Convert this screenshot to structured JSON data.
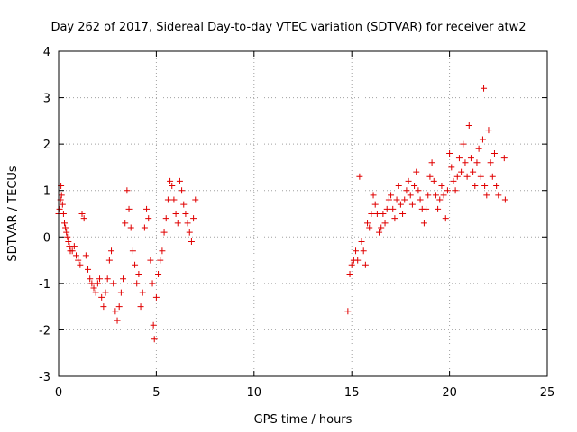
{
  "chart_data": {
    "type": "scatter",
    "title": "Day 262 of 2017, Sidereal Day-to-day VTEC variation (SDTVAR) for receiver atw2",
    "xlabel": "GPS time / hours",
    "ylabel": "SDTVAR / TECUs",
    "xlim": [
      0,
      25
    ],
    "ylim": [
      -3,
      4
    ],
    "xticks": [
      "0",
      "5",
      "10",
      "15",
      "20",
      "25"
    ],
    "yticks": [
      "-3",
      "-2",
      "-1",
      "0",
      "1",
      "2",
      "3",
      "4"
    ],
    "grid": true,
    "marker": "+",
    "color": "#e00000",
    "series": [
      {
        "name": "SDTVAR",
        "points": [
          [
            0.0,
            0.5
          ],
          [
            0.05,
            0.6
          ],
          [
            0.1,
            0.8
          ],
          [
            0.12,
            1.1
          ],
          [
            0.15,
            0.9
          ],
          [
            0.2,
            0.7
          ],
          [
            0.25,
            0.5
          ],
          [
            0.3,
            0.3
          ],
          [
            0.35,
            0.2
          ],
          [
            0.4,
            0.1
          ],
          [
            0.45,
            0.0
          ],
          [
            0.5,
            -0.1
          ],
          [
            0.55,
            -0.2
          ],
          [
            0.6,
            -0.3
          ],
          [
            0.7,
            -0.3
          ],
          [
            0.8,
            -0.2
          ],
          [
            0.9,
            -0.4
          ],
          [
            1.0,
            -0.5
          ],
          [
            1.1,
            -0.6
          ],
          [
            1.2,
            0.5
          ],
          [
            1.3,
            0.4
          ],
          [
            1.4,
            -0.4
          ],
          [
            1.5,
            -0.7
          ],
          [
            1.6,
            -0.9
          ],
          [
            1.7,
            -1.0
          ],
          [
            1.8,
            -1.1
          ],
          [
            1.9,
            -1.2
          ],
          [
            2.0,
            -1.0
          ],
          [
            2.1,
            -0.9
          ],
          [
            2.2,
            -1.3
          ],
          [
            2.3,
            -1.5
          ],
          [
            2.4,
            -1.2
          ],
          [
            2.5,
            -0.9
          ],
          [
            2.6,
            -0.5
          ],
          [
            2.7,
            -0.3
          ],
          [
            2.8,
            -1.0
          ],
          [
            2.9,
            -1.6
          ],
          [
            3.0,
            -1.8
          ],
          [
            3.1,
            -1.5
          ],
          [
            3.2,
            -1.2
          ],
          [
            3.3,
            -0.9
          ],
          [
            3.4,
            0.3
          ],
          [
            3.5,
            1.0
          ],
          [
            3.6,
            0.6
          ],
          [
            3.7,
            0.2
          ],
          [
            3.8,
            -0.3
          ],
          [
            3.9,
            -0.6
          ],
          [
            4.0,
            -1.0
          ],
          [
            4.1,
            -0.8
          ],
          [
            4.2,
            -1.5
          ],
          [
            4.3,
            -1.2
          ],
          [
            4.4,
            0.2
          ],
          [
            4.5,
            0.6
          ],
          [
            4.6,
            0.4
          ],
          [
            4.7,
            -0.5
          ],
          [
            4.8,
            -1.0
          ],
          [
            4.85,
            -1.9
          ],
          [
            4.9,
            -2.2
          ],
          [
            5.0,
            -1.3
          ],
          [
            5.1,
            -0.8
          ],
          [
            5.2,
            -0.5
          ],
          [
            5.3,
            -0.3
          ],
          [
            5.4,
            0.1
          ],
          [
            5.5,
            0.4
          ],
          [
            5.6,
            0.8
          ],
          [
            5.7,
            1.2
          ],
          [
            5.8,
            1.1
          ],
          [
            5.9,
            0.8
          ],
          [
            6.0,
            0.5
          ],
          [
            6.1,
            0.3
          ],
          [
            6.2,
            1.2
          ],
          [
            6.3,
            1.0
          ],
          [
            6.4,
            0.7
          ],
          [
            6.5,
            0.5
          ],
          [
            6.6,
            0.3
          ],
          [
            6.7,
            0.1
          ],
          [
            6.8,
            -0.1
          ],
          [
            6.9,
            0.4
          ],
          [
            7.0,
            0.8
          ],
          [
            14.8,
            -1.6
          ],
          [
            14.9,
            -0.8
          ],
          [
            15.0,
            -0.6
          ],
          [
            15.1,
            -0.5
          ],
          [
            15.2,
            -0.3
          ],
          [
            15.3,
            -0.5
          ],
          [
            15.4,
            1.3
          ],
          [
            15.5,
            -0.1
          ],
          [
            15.6,
            -0.3
          ],
          [
            15.7,
            -0.6
          ],
          [
            15.8,
            0.3
          ],
          [
            15.9,
            0.2
          ],
          [
            16.0,
            0.5
          ],
          [
            16.1,
            0.9
          ],
          [
            16.2,
            0.7
          ],
          [
            16.3,
            0.5
          ],
          [
            16.4,
            0.1
          ],
          [
            16.5,
            0.2
          ],
          [
            16.6,
            0.5
          ],
          [
            16.7,
            0.3
          ],
          [
            16.8,
            0.6
          ],
          [
            16.9,
            0.8
          ],
          [
            17.0,
            0.9
          ],
          [
            17.1,
            0.6
          ],
          [
            17.2,
            0.4
          ],
          [
            17.3,
            0.8
          ],
          [
            17.4,
            1.1
          ],
          [
            17.5,
            0.7
          ],
          [
            17.6,
            0.5
          ],
          [
            17.7,
            0.8
          ],
          [
            17.8,
            1.0
          ],
          [
            17.9,
            1.2
          ],
          [
            18.0,
            0.9
          ],
          [
            18.1,
            0.7
          ],
          [
            18.2,
            1.1
          ],
          [
            18.3,
            1.4
          ],
          [
            18.4,
            1.0
          ],
          [
            18.5,
            0.8
          ],
          [
            18.6,
            0.6
          ],
          [
            18.7,
            0.3
          ],
          [
            18.8,
            0.6
          ],
          [
            18.9,
            0.9
          ],
          [
            19.0,
            1.3
          ],
          [
            19.1,
            1.6
          ],
          [
            19.2,
            1.2
          ],
          [
            19.3,
            0.9
          ],
          [
            19.4,
            0.6
          ],
          [
            19.5,
            0.8
          ],
          [
            19.6,
            1.1
          ],
          [
            19.7,
            0.9
          ],
          [
            19.8,
            0.4
          ],
          [
            19.9,
            1.0
          ],
          [
            20.0,
            1.8
          ],
          [
            20.1,
            1.5
          ],
          [
            20.2,
            1.2
          ],
          [
            20.3,
            1.0
          ],
          [
            20.4,
            1.3
          ],
          [
            20.5,
            1.7
          ],
          [
            20.6,
            1.4
          ],
          [
            20.7,
            2.0
          ],
          [
            20.8,
            1.6
          ],
          [
            20.9,
            1.3
          ],
          [
            21.0,
            2.4
          ],
          [
            21.1,
            1.7
          ],
          [
            21.2,
            1.4
          ],
          [
            21.3,
            1.1
          ],
          [
            21.4,
            1.6
          ],
          [
            21.5,
            1.9
          ],
          [
            21.6,
            1.3
          ],
          [
            21.7,
            2.1
          ],
          [
            21.75,
            3.2
          ],
          [
            21.8,
            1.1
          ],
          [
            21.9,
            0.9
          ],
          [
            22.0,
            2.3
          ],
          [
            22.1,
            1.6
          ],
          [
            22.2,
            1.3
          ],
          [
            22.3,
            1.8
          ],
          [
            22.4,
            1.1
          ],
          [
            22.5,
            0.9
          ],
          [
            22.8,
            1.7
          ],
          [
            22.85,
            0.8
          ]
        ]
      }
    ]
  }
}
